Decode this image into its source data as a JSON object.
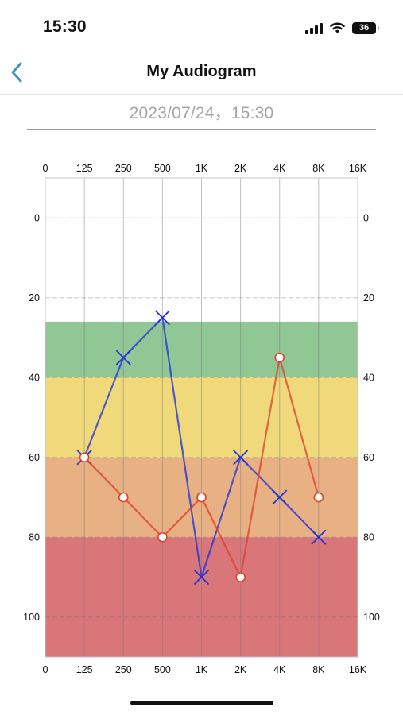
{
  "status_bar": {
    "time": "15:30",
    "icons": [
      "signal-icon",
      "wifi-icon",
      "battery-icon"
    ],
    "battery_level": "36"
  },
  "nav": {
    "back_icon": "chevron-left-icon",
    "title": "My Audiogram"
  },
  "test_datetime": "2023/07/24，15:30",
  "colors": {
    "accent": "#3b9aa8",
    "left_ear": "#2333d6",
    "right_ear": "#e2402a",
    "band_mild": "#91c795",
    "band_moderate": "#efd97a",
    "band_moderately_severe": "#e8b183",
    "band_severe": "#d9767a"
  },
  "chart_data": {
    "type": "line",
    "title": "",
    "xlabel": "",
    "ylabel": "",
    "categories": [
      "0",
      "125",
      "250",
      "500",
      "1K",
      "2K",
      "4K",
      "8K",
      "16K"
    ],
    "yticks": [
      0,
      20,
      40,
      60,
      80,
      100
    ],
    "ylim": [
      -10,
      110
    ],
    "y_inverted": true,
    "grid": true,
    "legend": "none",
    "bands": [
      {
        "from": 26,
        "to": 40,
        "color": "#91c795"
      },
      {
        "from": 40,
        "to": 60,
        "color": "#efd97a"
      },
      {
        "from": 60,
        "to": 80,
        "color": "#e8b183"
      },
      {
        "from": 80,
        "to": 110,
        "color": "#d9767a"
      }
    ],
    "series": [
      {
        "marker": "x",
        "color": "#2333d6",
        "x": [
          "125",
          "250",
          "500",
          "1K",
          "2K",
          "4K",
          "8K"
        ],
        "values": [
          60,
          35,
          25,
          90,
          60,
          70,
          80
        ]
      },
      {
        "marker": "o",
        "color": "#e2402a",
        "x": [
          "125",
          "250",
          "500",
          "1K",
          "2K",
          "4K",
          "8K"
        ],
        "values": [
          60,
          70,
          80,
          70,
          90,
          35,
          70
        ]
      }
    ]
  }
}
